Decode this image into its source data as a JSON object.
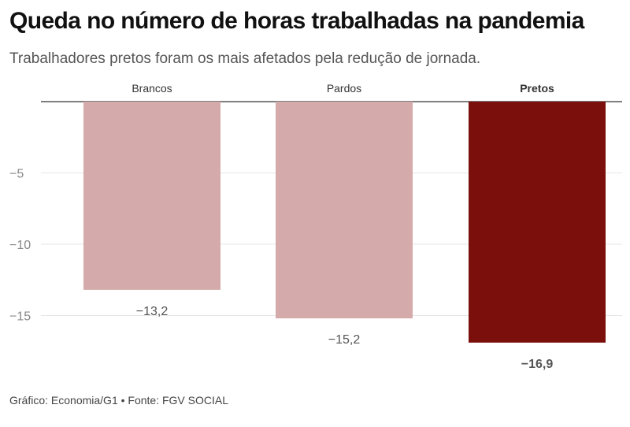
{
  "header": {
    "title": "Queda no número de horas trabalhadas na pandemia",
    "subtitle": "Trabalhadores pretos foram os mais afetados pela redução de jornada."
  },
  "footer": {
    "source": "Gráfico: Economia/G1 • Fonte: FGV SOCIAL"
  },
  "chart_data": {
    "type": "bar",
    "title": "Queda no número de horas trabalhadas na pandemia",
    "subtitle": "Trabalhadores pretos foram os mais afetados pela redução de jornada.",
    "categories": [
      "Brancos",
      "Pardos",
      "Pretos"
    ],
    "values": [
      -13.2,
      -15.2,
      -16.9
    ],
    "value_labels": [
      "−13,2",
      "−15,2",
      "−16,9"
    ],
    "highlight": "Pretos",
    "colors": {
      "default": "#d4abaa",
      "highlight": "#7b0f0b"
    },
    "yticks": [
      -5,
      -10,
      -15
    ],
    "ytick_labels": [
      "−5",
      "−10",
      "−15"
    ],
    "ylim": [
      -18.5,
      0
    ],
    "grid": true,
    "category_axis_position": "top",
    "xlabel": "",
    "ylabel": ""
  }
}
